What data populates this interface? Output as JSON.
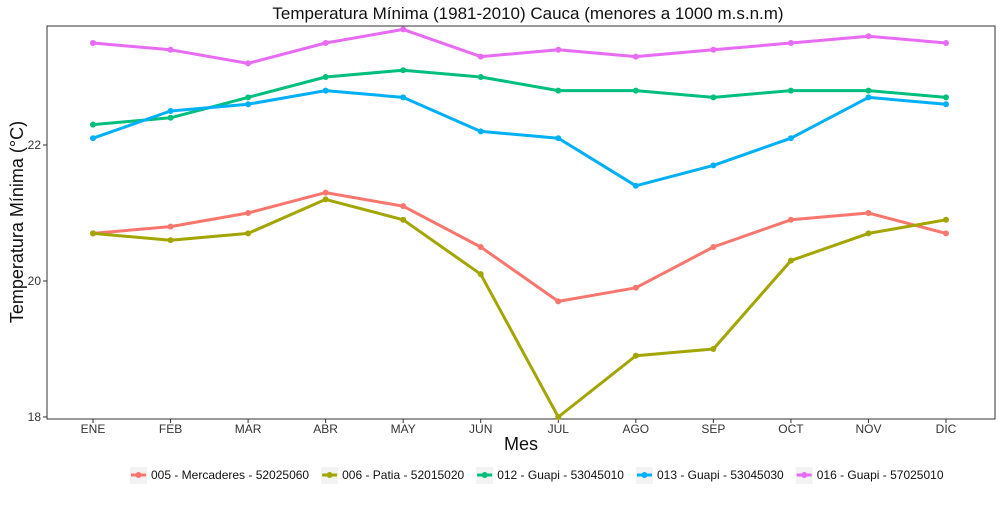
{
  "chart_data": {
    "type": "line",
    "title": "Temperatura Mínima (1981-2010) Cauca (menores a 1000 m.s.n.m)",
    "xlabel": "Mes",
    "ylabel": "Temperatura Mínima (°C)",
    "categories": [
      "ENE",
      "FEB",
      "MAR",
      "ABR",
      "MAY",
      "JUN",
      "JUL",
      "AGO",
      "SEP",
      "OCT",
      "NOV",
      "DIC"
    ],
    "yticks": [
      "18",
      "20",
      "22"
    ],
    "ylim": [
      17.97,
      23.75
    ],
    "grid": false,
    "legend_position": "bottom",
    "series": [
      {
        "name": "005 - Mercaderes - 52025060",
        "color": "#F8766D",
        "values": [
          20.7,
          20.8,
          21.0,
          21.3,
          21.1,
          20.5,
          19.7,
          19.9,
          20.5,
          20.9,
          21.0,
          20.7
        ]
      },
      {
        "name": "006 - Patia - 52015020",
        "color": "#A3A500",
        "values": [
          20.7,
          20.6,
          20.7,
          21.2,
          20.9,
          20.1,
          18.0,
          18.9,
          19.0,
          20.3,
          20.7,
          20.9
        ]
      },
      {
        "name": "012 - Guapi - 53045010",
        "color": "#00BF7D",
        "values": [
          22.3,
          22.4,
          22.7,
          23.0,
          23.1,
          23.0,
          22.8,
          22.8,
          22.7,
          22.8,
          22.8,
          22.7
        ]
      },
      {
        "name": "013 - Guapi - 53045030",
        "color": "#00B0F6",
        "values": [
          22.1,
          22.5,
          22.6,
          22.8,
          22.7,
          22.2,
          22.1,
          21.4,
          21.7,
          22.1,
          22.7,
          22.6
        ]
      },
      {
        "name": "016 - Guapi - 57025010",
        "color": "#E76BF3",
        "values": [
          23.5,
          23.4,
          23.2,
          23.5,
          23.7,
          23.3,
          23.4,
          23.3,
          23.4,
          23.5,
          23.6,
          23.5
        ]
      }
    ]
  }
}
